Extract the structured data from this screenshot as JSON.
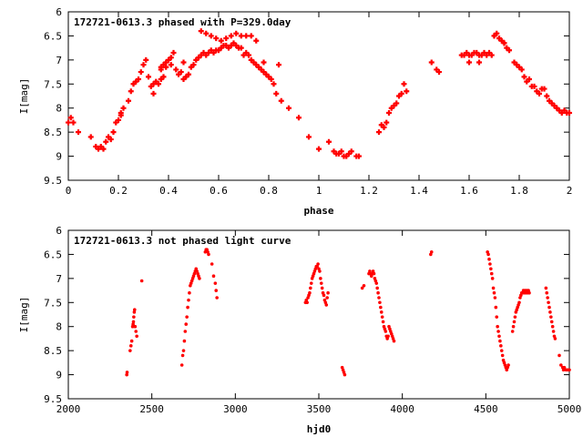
{
  "chart_data": [
    {
      "type": "scatter",
      "title": "172721-0613.3 phased with P=329.0day",
      "xlabel": "phase",
      "ylabel": "I[mag]",
      "xlim": [
        0,
        2
      ],
      "ylim": [
        9.5,
        6
      ],
      "y_inverted": true,
      "xticks": [
        "0",
        "0.2",
        "0.4",
        "0.6",
        "0.8",
        "1",
        "1.2",
        "1.4",
        "1.6",
        "1.8",
        "2"
      ],
      "yticks": [
        "6",
        "6.5",
        "7",
        "7.5",
        "8",
        "8.5",
        "9",
        "9.5"
      ],
      "color": "#ff0000",
      "marker": "plus",
      "series": [
        {
          "x": [
            0.0,
            0.01,
            0.02,
            0.04,
            0.09,
            0.11,
            0.12,
            0.13,
            0.14,
            0.15,
            0.16,
            0.17,
            0.18,
            0.19,
            0.2,
            0.21,
            0.22,
            0.24,
            0.25,
            0.26,
            0.27,
            0.28,
            0.29,
            0.3,
            0.31,
            0.32,
            0.33,
            0.34,
            0.35,
            0.36,
            0.37,
            0.37,
            0.38,
            0.38,
            0.39,
            0.4,
            0.41,
            0.42,
            0.43,
            0.44,
            0.45,
            0.46,
            0.47,
            0.48,
            0.49,
            0.5,
            0.51,
            0.52,
            0.53,
            0.54,
            0.55,
            0.56,
            0.57,
            0.58,
            0.59,
            0.6,
            0.61,
            0.62,
            0.63,
            0.64,
            0.65,
            0.66,
            0.67,
            0.68,
            0.69,
            0.7,
            0.71,
            0.72,
            0.73,
            0.74,
            0.75,
            0.76,
            0.77,
            0.78,
            0.79,
            0.8,
            0.81,
            0.82,
            0.83,
            0.85,
            0.88,
            0.92,
            0.96,
            1.0,
            1.04,
            1.06,
            1.07,
            1.08,
            1.09,
            1.1,
            1.11,
            1.12,
            1.13,
            1.15,
            1.16,
            1.24,
            1.25,
            1.26,
            1.27,
            1.28,
            1.29,
            1.3,
            1.31,
            1.32,
            1.33,
            1.34,
            1.35,
            1.45,
            1.47,
            1.48,
            1.57,
            1.58,
            1.59,
            1.6,
            1.61,
            1.62,
            1.63,
            1.64,
            1.65,
            1.66,
            1.67,
            1.68,
            1.69,
            1.7,
            1.71,
            1.72,
            1.73,
            1.74,
            1.75,
            1.76,
            1.78,
            1.79,
            1.8,
            1.81,
            1.82,
            1.83,
            1.84,
            1.85,
            1.86,
            1.87,
            1.88,
            1.89,
            1.9,
            1.91,
            1.92,
            1.93,
            1.94,
            1.95,
            1.96,
            1.97,
            1.98,
            1.99,
            2.0
          ],
          "y": [
            8.3,
            8.2,
            8.3,
            8.5,
            8.6,
            8.8,
            8.85,
            8.8,
            8.85,
            8.7,
            8.6,
            8.65,
            8.5,
            8.3,
            8.25,
            8.15,
            8.0,
            7.85,
            7.65,
            7.5,
            7.45,
            7.4,
            7.25,
            7.1,
            7.0,
            7.35,
            7.55,
            7.5,
            7.45,
            7.5,
            7.4,
            7.15,
            7.35,
            7.1,
            7.05,
            7.0,
            6.95,
            6.85,
            7.2,
            7.3,
            7.25,
            7.4,
            7.35,
            7.3,
            7.15,
            7.1,
            7.0,
            6.95,
            6.9,
            6.85,
            6.9,
            6.85,
            6.8,
            6.85,
            6.8,
            6.8,
            6.75,
            6.7,
            6.7,
            6.75,
            6.7,
            6.65,
            6.7,
            6.75,
            6.75,
            6.9,
            6.85,
            6.9,
            7.0,
            7.05,
            7.1,
            7.15,
            7.2,
            7.25,
            7.3,
            7.35,
            7.4,
            7.5,
            7.7,
            7.85,
            8.0,
            8.2,
            8.6,
            8.85,
            8.7,
            8.9,
            8.95,
            8.95,
            8.9,
            9.0,
            9.0,
            8.95,
            8.9,
            9.0,
            9.0,
            8.5,
            8.35,
            8.4,
            8.3,
            8.1,
            8.0,
            7.95,
            7.9,
            7.75,
            7.7,
            7.5,
            7.65,
            7.05,
            7.2,
            7.25,
            6.9,
            6.9,
            6.85,
            6.9,
            6.9,
            6.85,
            6.85,
            6.9,
            6.9,
            6.85,
            6.9,
            6.85,
            6.9,
            6.5,
            6.45,
            6.55,
            6.6,
            6.65,
            6.75,
            6.8,
            7.05,
            7.1,
            7.15,
            7.2,
            7.35,
            7.45,
            7.4,
            7.55,
            7.55,
            7.65,
            7.7,
            7.6,
            7.6,
            7.75,
            7.85,
            7.9,
            7.95,
            8.0,
            8.05,
            8.1,
            8.05,
            8.1,
            8.1
          ]
        },
        {
          "x": [
            0.53,
            0.55,
            0.57,
            0.59,
            0.61,
            0.63,
            0.65,
            0.67,
            0.69,
            0.71,
            0.73,
            0.75,
            0.78,
            0.84,
            0.46,
            0.41,
            0.39,
            0.37,
            0.34,
            0.21,
            1.6,
            1.64,
            1.7,
            1.72,
            1.74
          ],
          "y": [
            6.4,
            6.45,
            6.5,
            6.55,
            6.6,
            6.55,
            6.5,
            6.45,
            6.5,
            6.5,
            6.5,
            6.6,
            7.05,
            7.1,
            7.05,
            7.1,
            7.15,
            7.2,
            7.7,
            8.1,
            7.05,
            7.05,
            6.5,
            6.55,
            6.65
          ]
        }
      ]
    },
    {
      "type": "scatter",
      "title": "172721-0613.3 not phased light curve",
      "xlabel": "hjd0",
      "ylabel": "I[mag]",
      "xlim": [
        2000,
        5000
      ],
      "ylim": [
        9.5,
        6
      ],
      "y_inverted": true,
      "xticks": [
        "2000",
        "2500",
        "3000",
        "3500",
        "4000",
        "4500",
        "5000"
      ],
      "yticks": [
        "6",
        "6.5",
        "7",
        "7.5",
        "8",
        "8.5",
        "9",
        "9.5"
      ],
      "color": "#ff0000",
      "marker": "dot",
      "series": [
        {
          "x": [
            2350,
            2352,
            2370,
            2375,
            2380,
            2385,
            2388,
            2390,
            2392,
            2395,
            2397,
            2400,
            2405,
            2410,
            2440,
            2680,
            2685,
            2690,
            2695,
            2700,
            2705,
            2710,
            2715,
            2720,
            2725,
            2730,
            2735,
            2740,
            2745,
            2750,
            2755,
            2760,
            2765,
            2770,
            2775,
            2780,
            2785,
            2820,
            2825,
            2830,
            2835,
            2840,
            2860,
            2870,
            2880,
            2885,
            2890,
            3420,
            3425,
            3430,
            3435,
            3440,
            3445,
            3450,
            3455,
            3460,
            3465,
            3470,
            3475,
            3480,
            3485,
            3490,
            3495,
            3500,
            3505,
            3510,
            3515,
            3520,
            3525,
            3530,
            3535,
            3540,
            3545,
            3550,
            3555,
            3640,
            3645,
            3650,
            3655,
            3760,
            3770,
            3800,
            3805,
            3810,
            3815,
            3820,
            3825,
            3830,
            3835,
            3840,
            3845,
            3850,
            3855,
            3860,
            3865,
            3870,
            3875,
            3880,
            3885,
            3890,
            3895,
            3900,
            3905,
            3910,
            3915,
            3920,
            3925,
            3930,
            3935,
            3940,
            3945,
            3950,
            4170,
            4175,
            4510,
            4515,
            4520,
            4525,
            4530,
            4535,
            4540,
            4545,
            4550,
            4555,
            4560,
            4565,
            4570,
            4575,
            4580,
            4585,
            4590,
            4595,
            4600,
            4605,
            4610,
            4615,
            4620,
            4625,
            4630,
            4635,
            4660,
            4665,
            4670,
            4675,
            4680,
            4685,
            4690,
            4695,
            4700,
            4705,
            4710,
            4715,
            4720,
            4725,
            4730,
            4735,
            4740,
            4745,
            4750,
            4755,
            4760,
            4860,
            4865,
            4870,
            4875,
            4880,
            4885,
            4890,
            4895,
            4900,
            4905,
            4910,
            4915,
            4940,
            4950,
            4960,
            4965,
            4970,
            4980,
            4990,
            5000
          ],
          "y": [
            9.0,
            8.95,
            8.5,
            8.4,
            8.3,
            8.0,
            7.95,
            7.9,
            7.8,
            7.7,
            7.65,
            8.0,
            8.1,
            8.2,
            7.05,
            8.8,
            8.6,
            8.5,
            8.3,
            8.1,
            7.95,
            7.8,
            7.6,
            7.45,
            7.3,
            7.15,
            7.1,
            7.05,
            7.0,
            6.95,
            6.9,
            6.85,
            6.8,
            6.85,
            6.9,
            6.95,
            7.0,
            6.45,
            6.4,
            6.4,
            6.45,
            6.5,
            6.7,
            6.95,
            7.1,
            7.25,
            7.4,
            7.5,
            7.45,
            7.5,
            7.4,
            7.35,
            7.3,
            7.2,
            7.1,
            7.0,
            6.95,
            6.9,
            6.85,
            6.8,
            6.75,
            6.75,
            6.7,
            6.8,
            6.85,
            7.0,
            7.1,
            7.2,
            7.3,
            7.35,
            7.45,
            7.5,
            7.55,
            7.4,
            7.3,
            8.85,
            8.9,
            8.95,
            9.0,
            7.2,
            7.15,
            6.9,
            6.85,
            6.9,
            6.95,
            6.9,
            6.85,
            6.9,
            7.0,
            7.05,
            7.1,
            7.2,
            7.3,
            7.4,
            7.5,
            7.6,
            7.7,
            7.8,
            7.9,
            8.0,
            8.05,
            8.1,
            8.2,
            8.25,
            8.2,
            8.0,
            8.05,
            8.1,
            8.15,
            8.2,
            8.25,
            8.3,
            6.5,
            6.45,
            6.45,
            6.5,
            6.6,
            6.7,
            6.8,
            6.9,
            7.0,
            7.2,
            7.3,
            7.4,
            7.6,
            7.8,
            8.0,
            8.1,
            8.2,
            8.3,
            8.4,
            8.5,
            8.6,
            8.7,
            8.75,
            8.8,
            8.85,
            8.9,
            8.85,
            8.8,
            8.1,
            8.0,
            7.9,
            7.8,
            7.7,
            7.65,
            7.6,
            7.55,
            7.5,
            7.4,
            7.35,
            7.3,
            7.3,
            7.25,
            7.3,
            7.25,
            7.3,
            7.25,
            7.3,
            7.25,
            7.3,
            7.2,
            7.3,
            7.4,
            7.5,
            7.6,
            7.7,
            7.8,
            7.9,
            8.0,
            8.1,
            8.2,
            8.25,
            8.6,
            8.8,
            8.85,
            8.9,
            8.85,
            8.9,
            8.9,
            8.9
          ]
        }
      ]
    }
  ]
}
